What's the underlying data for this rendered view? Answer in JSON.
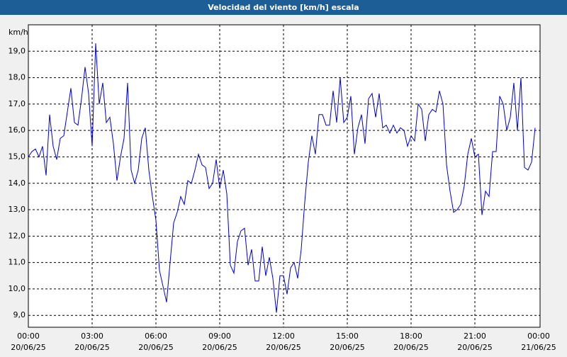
{
  "chart_data": {
    "type": "line",
    "title": "Velocidad del viento [km/h] escala",
    "y_unit": "km/h",
    "x": [
      0,
      10,
      20,
      30,
      40,
      50,
      60,
      70,
      80,
      90,
      100,
      110,
      120,
      130,
      140,
      150,
      160,
      170,
      180,
      190,
      200,
      210,
      220,
      230,
      240,
      250,
      260,
      270,
      280,
      290,
      300,
      310,
      320,
      330,
      340,
      350,
      360,
      370,
      380,
      390,
      400,
      410,
      420,
      430,
      440,
      450,
      460,
      470,
      480,
      490,
      500,
      510,
      520,
      530,
      540,
      550,
      560,
      570,
      580,
      590,
      600,
      610,
      620,
      630,
      640,
      650,
      660,
      670,
      680,
      690,
      700,
      710,
      720,
      730,
      740,
      750,
      760,
      770,
      780,
      790,
      800,
      810,
      820,
      830,
      840,
      850,
      860,
      870,
      880,
      890,
      900,
      910,
      920,
      930,
      940,
      950,
      960,
      970,
      980,
      990,
      1000,
      1010,
      1020,
      1030,
      1040,
      1050,
      1060,
      1070,
      1080,
      1090,
      1100,
      1110,
      1120,
      1130,
      1140,
      1150,
      1160,
      1170,
      1180,
      1190,
      1200,
      1210,
      1220,
      1230,
      1240,
      1250,
      1260,
      1270,
      1280,
      1290,
      1300,
      1310,
      1320,
      1330,
      1340,
      1350,
      1360,
      1370,
      1380,
      1390,
      1400,
      1410,
      1420,
      1430
    ],
    "series": [
      {
        "color": "#0000c8",
        "values": [
          15.0,
          15.2,
          15.3,
          15.0,
          15.4,
          14.3,
          16.6,
          15.4,
          14.9,
          15.7,
          15.8,
          16.7,
          17.6,
          16.3,
          16.2,
          17.2,
          18.4,
          17.4,
          15.4,
          19.3,
          17.0,
          17.8,
          16.3,
          16.5,
          15.5,
          14.1,
          15.0,
          15.7,
          17.8,
          14.5,
          14.0,
          14.5,
          15.7,
          16.1,
          14.5,
          13.5,
          12.6,
          10.7,
          10.1,
          9.5,
          11.0,
          12.5,
          12.9,
          13.5,
          13.2,
          14.1,
          14.0,
          14.5,
          15.1,
          14.7,
          14.6,
          13.8,
          14.0,
          14.9,
          13.8,
          14.5,
          13.6,
          10.9,
          10.6,
          11.8,
          12.2,
          12.3,
          10.9,
          11.5,
          10.3,
          10.3,
          11.6,
          10.5,
          11.2,
          10.4,
          9.1,
          10.5,
          10.5,
          9.8,
          10.8,
          11.0,
          10.4,
          11.5,
          13.3,
          14.8,
          15.8,
          15.1,
          16.6,
          16.6,
          16.2,
          16.2,
          17.5,
          16.3,
          18.0,
          16.3,
          16.5,
          17.3,
          15.1,
          16.1,
          16.6,
          15.5,
          17.2,
          17.4,
          16.5,
          17.4,
          16.1,
          16.2,
          15.9,
          16.2,
          15.9,
          16.1,
          16.0,
          15.4,
          15.8,
          15.6,
          17.0,
          16.8,
          15.6,
          16.6,
          16.8,
          16.7,
          17.5,
          17.0,
          14.7,
          13.7,
          12.9,
          13.0,
          13.2,
          13.9,
          15.1,
          15.7,
          15.0,
          15.1,
          12.8,
          13.7,
          13.5,
          15.2,
          15.2,
          17.3,
          17.0,
          16.0,
          16.5,
          17.8,
          16.0,
          18.0,
          14.6,
          14.5,
          14.8,
          16.1
        ]
      }
    ],
    "xlim": [
      0,
      1440
    ],
    "xticks": [
      {
        "value": 0,
        "label": "00:00"
      },
      {
        "value": 180,
        "label": "03:00"
      },
      {
        "value": 360,
        "label": "06:00"
      },
      {
        "value": 540,
        "label": "09:00"
      },
      {
        "value": 720,
        "label": "12:00"
      },
      {
        "value": 900,
        "label": "15:00"
      },
      {
        "value": 1080,
        "label": "18:00"
      },
      {
        "value": 1260,
        "label": "21:00"
      },
      {
        "value": 1440,
        "label": "00:00"
      }
    ],
    "xtick_dates": [
      "20/06/25",
      "20/06/25",
      "20/06/25",
      "20/06/25",
      "20/06/25",
      "20/06/25",
      "20/06/25",
      "20/06/25",
      "21/06/25"
    ],
    "ylim": [
      8.55,
      20.0
    ],
    "yticks": [
      {
        "value": 9,
        "label": "9,0"
      },
      {
        "value": 10,
        "label": "10,0"
      },
      {
        "value": 11,
        "label": "11,0"
      },
      {
        "value": 12,
        "label": "12,0"
      },
      {
        "value": 13,
        "label": "13,0"
      },
      {
        "value": 14,
        "label": "14,0"
      },
      {
        "value": 15,
        "label": "15,0"
      },
      {
        "value": 16,
        "label": "16,0"
      },
      {
        "value": 17,
        "label": "17,0"
      },
      {
        "value": 18,
        "label": "18,0"
      },
      {
        "value": 19,
        "label": "19,0"
      }
    ],
    "grid": true
  }
}
